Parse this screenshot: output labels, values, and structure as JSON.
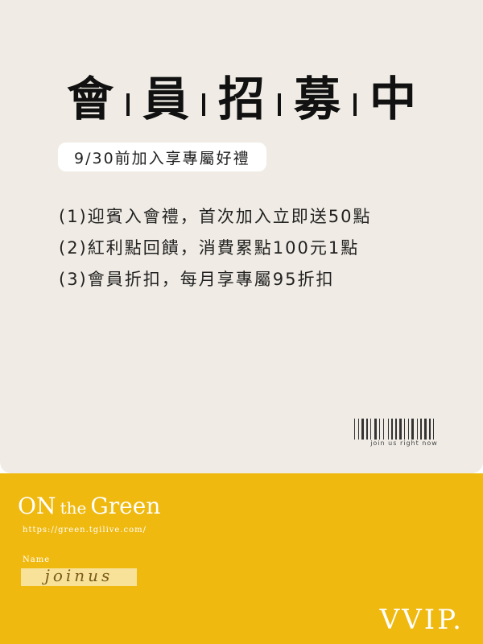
{
  "title": {
    "chars": [
      "會",
      "員",
      "招",
      "募",
      "中"
    ]
  },
  "subtitle": "9/30前加入享專屬好禮",
  "benefits": [
    "(1)迎賓入會禮，首次加入立即送50點",
    "(2)紅利點回饋，消費累點100元1點",
    "(3)會員折扣，每月享專屬95折扣"
  ],
  "barcode": {
    "caption": "join us right now"
  },
  "brand": {
    "on": "ON",
    "the": "the",
    "green": "Green",
    "url": "https://green.tgilive.com/"
  },
  "member": {
    "name_label": "Name",
    "name_value": "joinus",
    "tier": "VVIP."
  },
  "colors": {
    "top_bg": "#f0ece5",
    "bottom_bg": "#efb90f",
    "text": "#111111",
    "white": "#ffffff"
  }
}
